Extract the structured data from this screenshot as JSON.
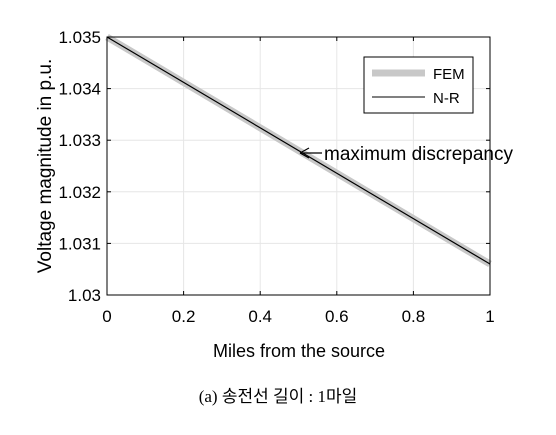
{
  "chart_data": {
    "type": "line",
    "xlabel": "Miles from the source",
    "ylabel": "Voltage magnitude in p.u.",
    "xlim": [
      0,
      1
    ],
    "ylim": [
      1.03,
      1.035
    ],
    "x_ticks": [
      "0",
      "0.2",
      "0.4",
      "0.6",
      "0.8",
      "1"
    ],
    "y_ticks": [
      "1.03",
      "1.031",
      "1.032",
      "1.033",
      "1.034",
      "1.035"
    ],
    "grid": true,
    "legend_position": "top-right",
    "series": [
      {
        "name": "FEM",
        "color": "#c8c8c8",
        "x": [
          0,
          1
        ],
        "y": [
          1.035,
          1.0306
        ]
      },
      {
        "name": "N-R",
        "color": "#000000",
        "x": [
          0,
          1
        ],
        "y": [
          1.035,
          1.0306
        ]
      }
    ],
    "annotation": {
      "text": "maximum discrepancy",
      "x": 0.5,
      "y": 1.0328
    }
  },
  "caption": "(a) 송전선 길이 : 1마일"
}
